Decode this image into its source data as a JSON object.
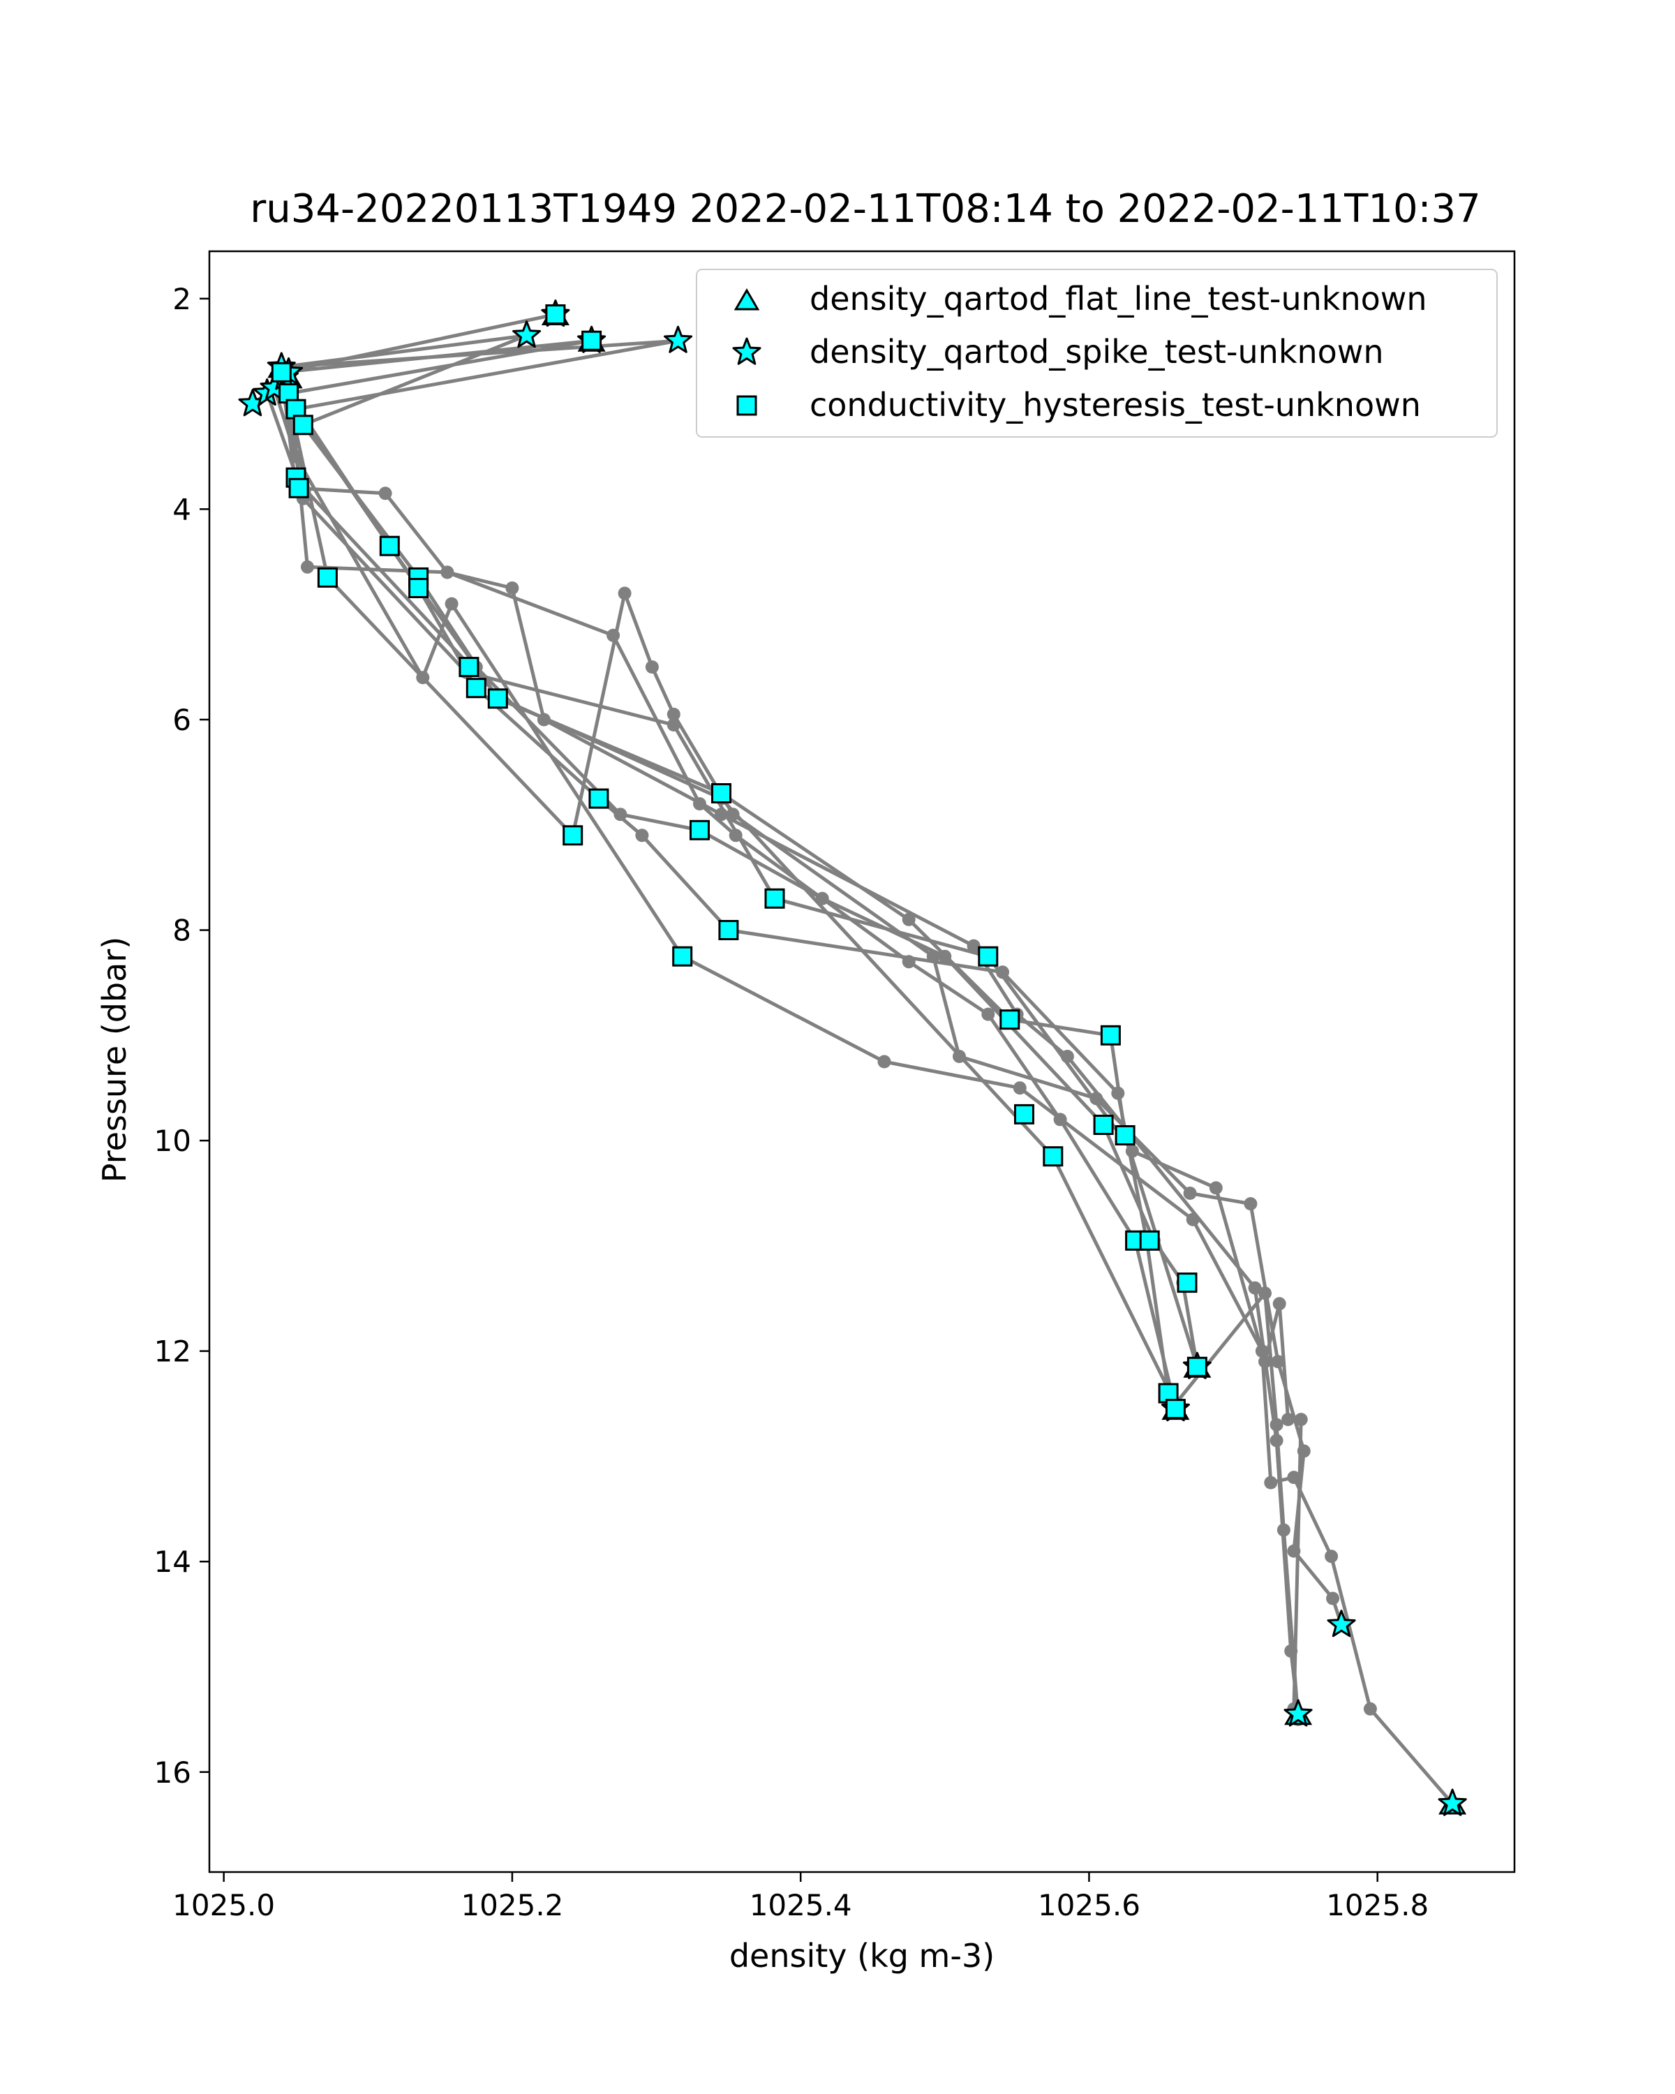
{
  "chart_data": {
    "type": "line",
    "title": "ru34-20220113T1949 2022-02-11T08:14 to 2022-02-11T10:37",
    "xlabel": "density (kg m-3)",
    "ylabel": "Pressure (dbar)",
    "xlim": [
      1024.99,
      1025.895
    ],
    "ylim": [
      1.55,
      16.95
    ],
    "y_inverted": true,
    "x_ticks": [
      1025.0,
      1025.2,
      1025.4,
      1025.6,
      1025.8
    ],
    "x_tick_labels": [
      "1025.0",
      "1025.2",
      "1025.4",
      "1025.6",
      "1025.8"
    ],
    "y_ticks": [
      2,
      4,
      6,
      8,
      10,
      12,
      14,
      16
    ],
    "y_tick_labels": [
      "2",
      "4",
      "6",
      "8",
      "10",
      "12",
      "14",
      "16"
    ],
    "grid": false,
    "legend_position": "top-right",
    "colors": {
      "line": "#808080",
      "marker_fill": "#00ffff",
      "marker_edge": "#000000"
    },
    "legend": [
      {
        "label": "density_qartod_flat_line_test-unknown",
        "marker": "triangle"
      },
      {
        "label": "density_qartod_spike_test-unknown",
        "marker": "star"
      },
      {
        "label": "conductivity_hysteresis_test-unknown",
        "marker": "square"
      }
    ],
    "profiles": [
      {
        "x": [
          1025.23,
          1025.04,
          1025.05,
          1025.112,
          1025.155,
          1025.27,
          1025.33,
          1025.355,
          1025.475,
          1025.53,
          1025.58,
          1025.632,
          1025.66
        ],
        "y": [
          2.15,
          2.7,
          3.8,
          3.85,
          4.6,
          5.2,
          6.8,
          7.1,
          8.3,
          8.8,
          9.8,
          10.95,
          12.55
        ]
      },
      {
        "x": [
          1025.04,
          1025.255,
          1025.045,
          1025.115,
          1025.175,
          1025.275,
          1025.33,
          1025.415,
          1025.5,
          1025.61,
          1025.645,
          1025.665,
          1025.675
        ],
        "y": [
          2.7,
          2.4,
          2.9,
          4.35,
          5.5,
          6.9,
          7.05,
          7.7,
          8.25,
          9.85,
          10.95,
          11.35,
          12.15
        ]
      },
      {
        "x": [
          1025.04,
          1025.21,
          1025.055,
          1025.135,
          1025.19,
          1025.345,
          1025.475,
          1025.545,
          1025.615,
          1025.625,
          1025.675
        ],
        "y": [
          2.65,
          2.35,
          3.2,
          4.65,
          5.8,
          6.7,
          7.9,
          8.85,
          9.0,
          9.95,
          12.15
        ]
      },
      {
        "x": [
          1025.04,
          1025.315,
          1025.05,
          1025.135,
          1025.175,
          1025.26,
          1025.29,
          1025.35,
          1025.54,
          1025.62,
          1025.64,
          1025.655
        ],
        "y": [
          2.65,
          2.4,
          3.05,
          4.75,
          5.7,
          6.75,
          7.1,
          8.0,
          8.4,
          9.55,
          10.95,
          12.4
        ]
      },
      {
        "x": [
          1025.045,
          1025.058,
          1025.155,
          1025.2,
          1025.222,
          1025.345,
          1025.52,
          1025.55,
          1025.585,
          1025.715,
          1025.73,
          1025.74,
          1025.745
        ],
        "y": [
          2.7,
          4.55,
          4.6,
          4.75,
          6.0,
          6.9,
          8.15,
          8.8,
          9.2,
          11.4,
          12.85,
          14.85,
          15.45
        ]
      },
      {
        "x": [
          1025.042,
          1025.072,
          1025.242,
          1025.278,
          1025.297,
          1025.312,
          1025.353,
          1025.492,
          1025.51,
          1025.605,
          1025.67,
          1025.712,
          1025.731,
          1025.749,
          1025.742,
          1025.769,
          1025.775
        ],
        "y": [
          2.75,
          4.65,
          7.1,
          4.8,
          5.5,
          5.95,
          6.9,
          8.25,
          9.2,
          9.6,
          10.5,
          10.6,
          12.1,
          12.95,
          13.9,
          14.35,
          14.6
        ]
      },
      {
        "x": [
          1025.02,
          1025.035,
          1025.05,
          1025.138,
          1025.158,
          1025.318,
          1025.458,
          1025.552,
          1025.672,
          1025.72,
          1025.726,
          1025.742,
          1025.768,
          1025.795,
          1025.852
        ],
        "y": [
          3.0,
          2.85,
          3.5,
          5.6,
          4.9,
          8.25,
          9.25,
          9.5,
          10.75,
          12.0,
          13.25,
          13.2,
          13.95,
          15.4,
          16.3
        ]
      },
      {
        "x": [
          1025.04,
          1025.055,
          1025.168,
          1025.312,
          1025.382,
          1025.53,
          1025.63,
          1025.688,
          1025.722,
          1025.732,
          1025.738,
          1025.747,
          1025.742
        ],
        "y": [
          2.7,
          3.9,
          5.55,
          6.05,
          7.7,
          8.25,
          10.1,
          10.45,
          12.1,
          11.55,
          12.65,
          12.65,
          15.4
        ]
      },
      {
        "x": [
          1025.03,
          1025.052,
          1025.192,
          1025.345,
          1025.575,
          1025.66,
          1025.722,
          1025.73,
          1025.735,
          1025.745
        ],
        "y": [
          2.9,
          3.75,
          5.8,
          6.75,
          10.15,
          12.5,
          11.45,
          12.7,
          13.7,
          15.5
        ]
      }
    ],
    "flagged_points": {
      "density_qartod_flat_line_test-unknown": {
        "x": [
          1025.04,
          1025.042,
          1025.045,
          1025.23,
          1025.255,
          1025.66,
          1025.675,
          1025.745,
          1025.852
        ],
        "y": [
          2.65,
          2.7,
          2.75,
          2.15,
          2.4,
          12.55,
          12.15,
          15.45,
          16.3
        ]
      },
      "density_qartod_spike_test-unknown": {
        "x": [
          1025.02,
          1025.03,
          1025.035,
          1025.04,
          1025.042,
          1025.045,
          1025.21,
          1025.23,
          1025.255,
          1025.315,
          1025.66,
          1025.675,
          1025.745,
          1025.775,
          1025.852
        ],
        "y": [
          3.0,
          2.9,
          2.85,
          2.65,
          2.75,
          2.7,
          2.35,
          2.15,
          2.4,
          2.4,
          12.55,
          12.15,
          15.45,
          14.6,
          16.3
        ]
      },
      "conductivity_hysteresis_test-unknown": {
        "x": [
          1025.04,
          1025.045,
          1025.05,
          1025.055,
          1025.05,
          1025.052,
          1025.072,
          1025.115,
          1025.135,
          1025.135,
          1025.17,
          1025.175,
          1025.19,
          1025.23,
          1025.242,
          1025.255,
          1025.26,
          1025.318,
          1025.33,
          1025.345,
          1025.35,
          1025.382,
          1025.53,
          1025.545,
          1025.555,
          1025.575,
          1025.61,
          1025.615,
          1025.625,
          1025.632,
          1025.642,
          1025.655,
          1025.66,
          1025.668,
          1025.675
        ],
        "y": [
          2.7,
          2.9,
          3.05,
          3.2,
          3.7,
          3.8,
          4.65,
          4.35,
          4.65,
          4.75,
          5.5,
          5.7,
          5.8,
          2.15,
          7.1,
          2.4,
          6.75,
          8.25,
          7.05,
          6.7,
          8.0,
          7.7,
          8.25,
          8.85,
          9.75,
          10.15,
          9.85,
          9.0,
          9.95,
          10.95,
          10.95,
          12.4,
          12.55,
          11.35,
          12.15
        ]
      }
    }
  }
}
